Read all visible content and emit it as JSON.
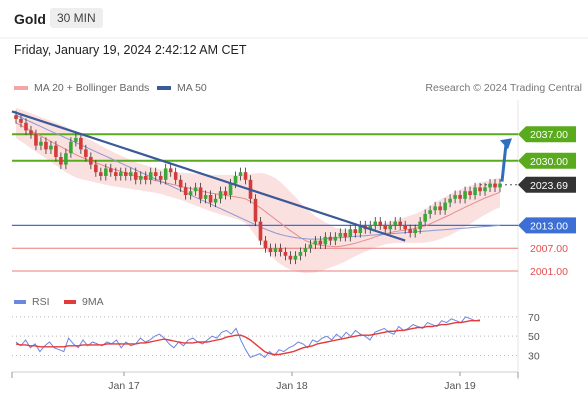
{
  "header": {
    "title": "Gold",
    "timeframe": "30 MIN"
  },
  "timestamp": "Friday, January 19, 2024 2:42:12 AM CET",
  "credit": "Research © 2024 Trading Central",
  "colors": {
    "bollinger": "#f4a6a6",
    "ma50": "#3a5a98",
    "resistance": "#5aaa1e",
    "pivot": "#3b6fd6",
    "support": "#e87c7c",
    "up": "#39a839",
    "down": "#d43a3a",
    "rsi": "#6d86e0",
    "rsi_ma": "#e53a3a",
    "arrow": "#2f6fc0"
  },
  "chart_data": [
    {
      "type": "line",
      "legend": [
        "MA 20 + Bollinger Bands",
        "MA 50"
      ],
      "x_ticks": [
        "Jan 17",
        "Jan 18",
        "Jan 19"
      ],
      "levels": [
        {
          "value": 2037.0,
          "label": "2037.00",
          "kind": "resistance"
        },
        {
          "value": 2030.0,
          "label": "2030.00",
          "kind": "resistance"
        },
        {
          "value": 2023.69,
          "label": "2023.69",
          "kind": "current"
        },
        {
          "value": 2013.0,
          "label": "2013.00",
          "kind": "pivot"
        },
        {
          "value": 2007.0,
          "label": "2007.00",
          "kind": "support"
        },
        {
          "value": 2001.0,
          "label": "2001.00",
          "kind": "support"
        }
      ],
      "candles": {
        "close": [
          2041,
          2040,
          2038,
          2037,
          2034,
          2035,
          2033,
          2034,
          2031,
          2029,
          2032,
          2035,
          2036,
          2033,
          2031,
          2029,
          2027,
          2026,
          2028,
          2027,
          2026,
          2027,
          2026,
          2027,
          2025,
          2026,
          2025,
          2027,
          2026,
          2025,
          2028,
          2027,
          2025,
          2023,
          2021,
          2022,
          2023,
          2020,
          2021,
          2019,
          2020,
          2022,
          2021,
          2024,
          2026,
          2027,
          2025,
          2020,
          2014,
          2009,
          2007,
          2006,
          2007,
          2006,
          2005,
          2004,
          2005,
          2006,
          2007,
          2008,
          2009,
          2008,
          2010,
          2009,
          2010,
          2011,
          2010,
          2012,
          2011,
          2013,
          2012,
          2013,
          2014,
          2013,
          2012,
          2013,
          2014,
          2013,
          2012,
          2011,
          2012,
          2014,
          2016,
          2017,
          2018,
          2017,
          2019,
          2020,
          2021,
          2020,
          2022,
          2021,
          2023,
          2022,
          2023,
          2024,
          2023,
          2024
        ],
        "ma20": [
          2040,
          2039.3,
          2038.6,
          2037.9,
          2037.2,
          2036.5,
          2035.8,
          2035.1,
          2034.4,
          2033.7,
          2033,
          2032.3,
          2031.6,
          2031,
          2030.5,
          2030,
          2029.5,
          2029,
          2028.5,
          2028,
          2027.6,
          2027.2,
          2026.8,
          2026.4,
          2026,
          2025.7,
          2025.4,
          2025.1,
          2024.8,
          2024.5,
          2024.2,
          2023.9,
          2023.6,
          2023.3,
          2023,
          2022.7,
          2022.4,
          2022.1,
          2021.8,
          2021.5,
          2021.3,
          2021.1,
          2020.9,
          2020.7,
          2020.5,
          2020.3,
          2020,
          2019.3,
          2018.5,
          2017.6,
          2016.6,
          2015.6,
          2014.6,
          2013.6,
          2012.6,
          2011.6,
          2010.7,
          2009.8,
          2009,
          2008.5,
          2008,
          2007.8,
          2007.6,
          2007.5,
          2007.4,
          2007.5,
          2007.7,
          2008,
          2008.3,
          2008.7,
          2009.1,
          2009.5,
          2010,
          2010.4,
          2010.8,
          2011.1,
          2011.4,
          2011.6,
          2011.8,
          2012,
          2012.2,
          2012.5,
          2012.9,
          2013.4,
          2014,
          2014.6,
          2015.2,
          2015.8,
          2016.5,
          2017.1,
          2017.8,
          2018.4,
          2019,
          2019.6,
          2020.2,
          2020.7,
          2021.2,
          2021.7
        ],
        "bb_width": [
          4,
          4.2,
          4.4,
          4.6,
          4.8,
          5,
          5.2,
          5.4,
          5.6,
          5.8,
          6,
          6,
          6,
          5.8,
          5.6,
          5.4,
          5.2,
          5,
          4.8,
          4.6,
          4.4,
          4.2,
          4,
          3.8,
          3.6,
          3.5,
          3.4,
          3.3,
          3.2,
          3.2,
          3.3,
          3.4,
          3.5,
          3.6,
          3.8,
          4,
          4.2,
          4.4,
          4.6,
          4.8,
          5,
          5.2,
          5.4,
          5.6,
          5.8,
          6,
          6.4,
          7.2,
          8.2,
          9.2,
          10,
          10.5,
          10.8,
          10.8,
          10.6,
          10.2,
          9.8,
          9.2,
          8.6,
          8,
          7.4,
          6.8,
          6.2,
          5.6,
          5,
          4.6,
          4.2,
          3.8,
          3.4,
          3.2,
          3,
          2.9,
          2.8,
          2.8,
          2.8,
          2.9,
          3,
          3.2,
          3.4,
          3.6,
          3.8,
          4.1,
          4.4,
          4.7,
          5,
          5.2,
          5.3,
          5.4,
          5.4,
          5.3,
          5.2,
          5,
          4.8,
          4.6,
          4.4,
          4.2,
          4,
          3.9
        ],
        "ma50": [
          2042,
          2041.4,
          2040.8,
          2040.2,
          2039.6,
          2039,
          2038.4,
          2037.8,
          2037.2,
          2036.6,
          2036,
          2035.4,
          2034.8,
          2034.2,
          2033.6,
          2033,
          2032.4,
          2031.8,
          2031.2,
          2030.6,
          2030,
          2029.4,
          2028.8,
          2028.2,
          2027.6,
          2027,
          2026.4,
          2025.8,
          2025.2,
          2024.6,
          2024,
          2023.4,
          2022.8,
          2022.2,
          2021.6,
          2021,
          2020.4,
          2019.8,
          2019.2,
          2018.6,
          2018,
          2017.4,
          2016.8,
          2016.2,
          2015.6,
          2015,
          2014.4,
          2013.8,
          2013.2,
          2012.6,
          2012,
          2011.5,
          2011,
          2010.6,
          2010.3,
          2010,
          2009.8,
          2009.6,
          2009.5,
          2009.4,
          2009.4,
          2009.4,
          2009.5,
          2009.6,
          2009.7,
          2009.8,
          2009.9,
          2010,
          2010.1,
          2010.2,
          2010.3,
          2010.4,
          2010.5,
          2010.6,
          2010.7,
          2010.8,
          2010.9,
          2011,
          2011.1,
          2011.2,
          2011.3,
          2011.4,
          2011.5,
          2011.6,
          2011.7,
          2011.8,
          2011.9,
          2012,
          2012.1,
          2012.2,
          2012.3,
          2012.4,
          2012.5,
          2012.6,
          2012.7,
          2012.8,
          2012.9,
          2013
        ]
      },
      "trendline": {
        "from": 2043,
        "to": 2009
      },
      "arrow_target": 2037.0
    },
    {
      "type": "line",
      "legend": [
        "RSI",
        "9MA"
      ],
      "y_ticks": [
        70,
        50,
        30
      ],
      "ylim": [
        15,
        75
      ],
      "rsi": [
        44,
        40,
        46,
        38,
        42,
        34,
        40,
        44,
        38,
        36,
        34,
        48,
        42,
        38,
        46,
        40,
        44,
        42,
        40,
        44,
        42,
        46,
        38,
        44,
        40,
        42,
        48,
        44,
        46,
        50,
        52,
        48,
        42,
        38,
        44,
        40,
        46,
        48,
        44,
        42,
        46,
        50,
        48,
        54,
        56,
        52,
        58,
        46,
        36,
        28,
        30,
        32,
        28,
        34,
        30,
        36,
        34,
        38,
        40,
        44,
        42,
        38,
        46,
        44,
        48,
        50,
        46,
        52,
        48,
        54,
        50,
        56,
        52,
        50,
        46,
        54,
        56,
        58,
        54,
        52,
        60,
        56,
        58,
        62,
        60,
        58,
        64,
        62,
        60,
        66,
        64,
        68,
        66,
        64,
        70,
        68,
        66,
        67
      ],
      "rsi_ma": [
        42,
        41,
        41,
        40,
        40,
        39,
        39,
        39,
        39,
        39,
        39,
        40,
        40,
        40,
        41,
        41,
        41,
        41,
        41,
        42,
        42,
        42,
        42,
        42,
        42,
        42,
        43,
        43,
        44,
        45,
        46,
        47,
        46,
        45,
        44,
        43,
        43,
        43,
        44,
        44,
        44,
        45,
        46,
        47,
        49,
        50,
        51,
        51,
        49,
        46,
        42,
        38,
        34,
        32,
        31,
        31,
        32,
        33,
        34,
        36,
        38,
        39,
        40,
        42,
        43,
        44,
        45,
        46,
        47,
        48,
        49,
        50,
        51,
        51,
        51,
        52,
        53,
        54,
        55,
        55,
        56,
        56,
        57,
        58,
        59,
        59,
        60,
        60,
        61,
        62,
        62,
        63,
        64,
        64,
        65,
        66,
        66,
        66
      ]
    }
  ]
}
